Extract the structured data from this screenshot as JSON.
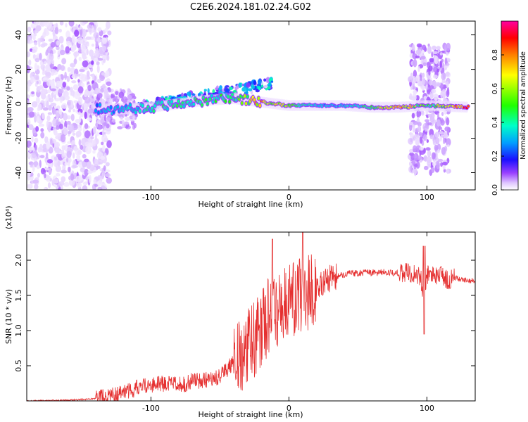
{
  "title": "C2E6.2024.181.02.24.G02",
  "chart_data": [
    {
      "type": "heatmap",
      "xlabel": "Height of straight line (km)",
      "ylabel": "Frequency (Hz)",
      "xlim": [
        -190,
        135
      ],
      "ylim": [
        -50,
        48
      ],
      "x_ticks": [
        -100,
        0,
        100
      ],
      "y_ticks": [
        -40,
        -20,
        0,
        20,
        40
      ],
      "grid": false,
      "colorbar": {
        "label": "Normalized spectral amplitude",
        "range": [
          0.0,
          1.0
        ],
        "ticks": [
          0.0,
          0.2,
          0.4,
          0.6,
          0.8
        ],
        "colors": [
          "#ffffff",
          "#e0c8ff",
          "#9a40ff",
          "#1a10ff",
          "#00a0ff",
          "#00ffc8",
          "#20ff00",
          "#ffff00",
          "#ff8000",
          "#ff0000",
          "#ff00a0"
        ]
      },
      "main_trace": [
        {
          "x": -140,
          "y": -3,
          "v": 0.45
        },
        {
          "x": -120,
          "y": -3,
          "v": 0.5
        },
        {
          "x": -100,
          "y": -2,
          "v": 0.55
        },
        {
          "x": -80,
          "y": 0,
          "v": 0.6
        },
        {
          "x": -60,
          "y": 2,
          "v": 0.6
        },
        {
          "x": -40,
          "y": 3,
          "v": 0.6
        },
        {
          "x": -20,
          "y": 1,
          "v": 0.85
        },
        {
          "x": 0,
          "y": -1,
          "v": 0.7
        },
        {
          "x": 20,
          "y": -1,
          "v": 0.5
        },
        {
          "x": 40,
          "y": -1,
          "v": 0.5
        },
        {
          "x": 60,
          "y": -2,
          "v": 0.65
        },
        {
          "x": 80,
          "y": -2,
          "v": 0.9
        },
        {
          "x": 100,
          "y": -1,
          "v": 0.6
        },
        {
          "x": 130,
          "y": -2,
          "v": 0.95
        }
      ]
    },
    {
      "type": "line",
      "xlabel": "Height of straight line (km)",
      "ylabel": "SNR (10 * v/v)",
      "y_multiplier": "(x10⁴)",
      "xlim": [
        -190,
        135
      ],
      "ylim": [
        0.0,
        2.4
      ],
      "x_ticks": [
        -100,
        0,
        100
      ],
      "y_ticks": [
        0.5,
        1.0,
        1.5,
        2.0
      ],
      "color": "#e53030",
      "series": [
        {
          "x": [
            -190,
            -160,
            -140,
            -125,
            -110,
            -100,
            -90,
            -80,
            -70,
            -60,
            -50,
            -40,
            -30,
            -20,
            -15,
            -10,
            -5,
            0,
            5,
            10,
            15,
            20,
            25,
            30,
            40,
            50,
            60,
            70,
            80,
            90,
            95,
            98,
            100,
            105,
            110,
            115,
            120,
            125,
            130,
            135
          ],
          "y": [
            0.0,
            0.01,
            0.03,
            0.08,
            0.18,
            0.22,
            0.25,
            0.22,
            0.28,
            0.3,
            0.35,
            0.55,
            0.75,
            1.0,
            1.2,
            1.3,
            1.35,
            1.4,
            1.45,
            1.5,
            1.55,
            1.6,
            1.7,
            1.75,
            1.8,
            1.82,
            1.82,
            1.83,
            1.82,
            1.82,
            1.78,
            1.5,
            1.8,
            1.78,
            1.82,
            1.72,
            1.75,
            1.72,
            1.72,
            1.7
          ]
        }
      ]
    }
  ]
}
